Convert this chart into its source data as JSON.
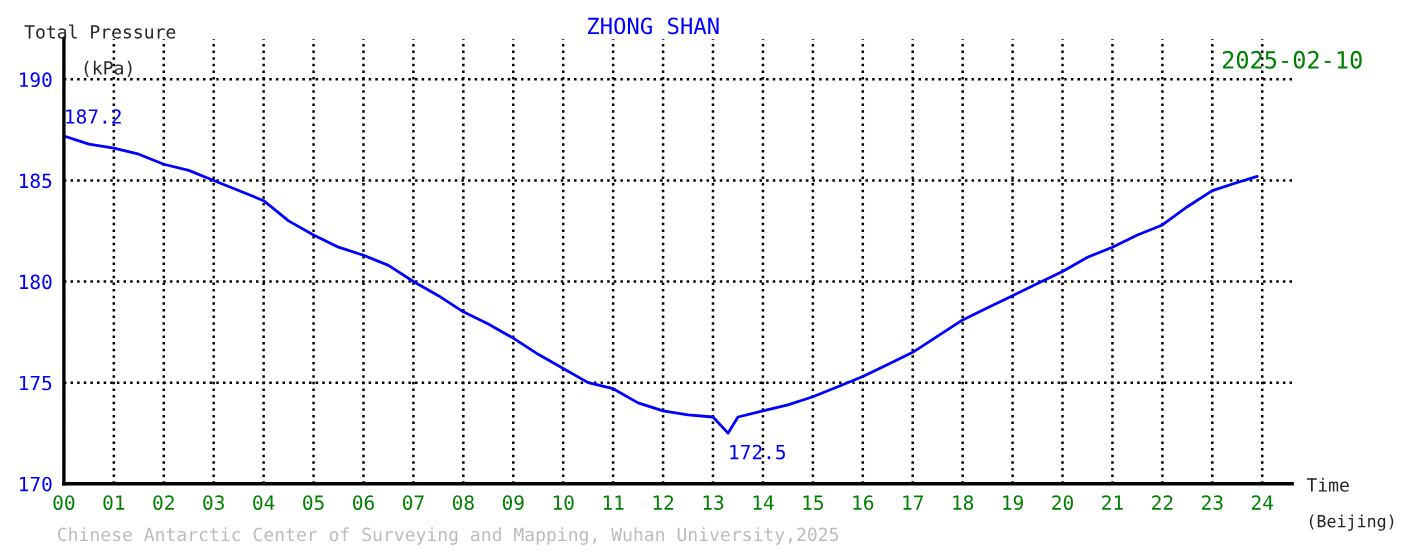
{
  "chart_data": {
    "type": "line",
    "title": "ZHONG SHAN",
    "subtitle": "2025-02-10",
    "ylabel": "Total Pressure\n(kPa)",
    "xlabel": "Time\n(Beijing)",
    "x": [
      0,
      0.5,
      1,
      1.5,
      2,
      2.5,
      3,
      3.5,
      4,
      4.5,
      5,
      5.5,
      6,
      6.5,
      7,
      7.5,
      8,
      8.5,
      9,
      9.5,
      10,
      10.5,
      11,
      11.5,
      12,
      12.5,
      13,
      13.3,
      13.5,
      14,
      14.5,
      15,
      15.5,
      16,
      16.5,
      17,
      17.5,
      18,
      18.5,
      19,
      19.5,
      20,
      20.5,
      21,
      21.5,
      22,
      22.5,
      23,
      23.5,
      23.9
    ],
    "series": [
      {
        "color": "#0000ff",
        "values": [
          187.2,
          186.8,
          186.6,
          186.3,
          185.8,
          185.5,
          185.0,
          184.5,
          184.0,
          183.0,
          182.3,
          181.7,
          181.3,
          180.8,
          180.0,
          179.3,
          178.5,
          177.9,
          177.2,
          176.4,
          175.7,
          175.0,
          174.7,
          174.0,
          173.6,
          173.4,
          173.3,
          172.5,
          173.3,
          173.6,
          173.9,
          174.3,
          174.8,
          175.3,
          175.9,
          176.5,
          177.3,
          178.1,
          178.7,
          179.3,
          179.9,
          180.5,
          181.2,
          181.7,
          182.3,
          182.8,
          183.7,
          184.5,
          184.9,
          185.2
        ]
      }
    ],
    "xlim": [
      0,
      24.6
    ],
    "ylim": [
      170,
      192
    ],
    "xticks": [
      {
        "value": 0,
        "label": "00"
      },
      {
        "value": 1,
        "label": "01"
      },
      {
        "value": 2,
        "label": "02"
      },
      {
        "value": 3,
        "label": "03"
      },
      {
        "value": 4,
        "label": "04"
      },
      {
        "value": 5,
        "label": "05"
      },
      {
        "value": 6,
        "label": "06"
      },
      {
        "value": 7,
        "label": "07"
      },
      {
        "value": 8,
        "label": "08"
      },
      {
        "value": 9,
        "label": "09"
      },
      10,
      11,
      12,
      13,
      14,
      15,
      16,
      17,
      18,
      19,
      20,
      21,
      22,
      23,
      24
    ],
    "yticks": [
      170,
      175,
      180,
      185,
      190
    ],
    "grid": true,
    "annotations": [
      {
        "text": "187.2",
        "x": 0,
        "y": 187.2
      },
      {
        "text": "172.5",
        "x": 13.3,
        "y": 172.5
      },
      "Chinese Antarctic Center of Surveying and Mapping, Wuhan University,2025"
    ]
  }
}
